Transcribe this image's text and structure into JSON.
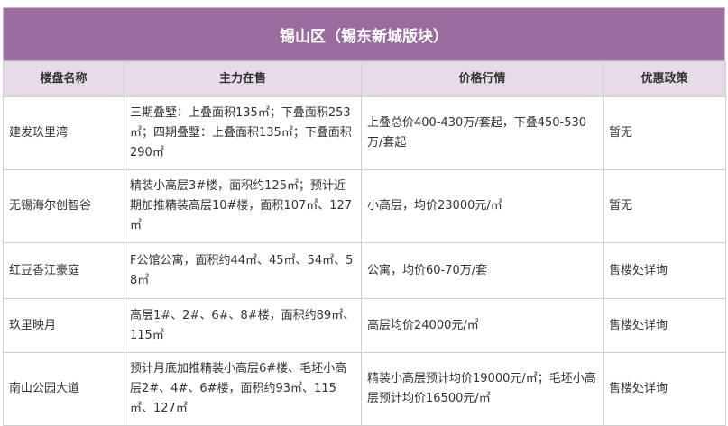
{
  "title": "锡山区（锡东新城版块）",
  "table": {
    "header": [
      "楼盘名称",
      "主力在售",
      "价格行情",
      "优惠政策"
    ],
    "rows": [
      [
        "建发玖里湾",
        "三期叠墅：上叠面积135㎡；下叠面积253㎡；四期叠墅：上叠面积135㎡；下叠面积290㎡",
        "上叠总价400-430万/套起，下叠450-530万/套起",
        "暂无"
      ],
      [
        "无锡海尔创智谷",
        "精装小高层3#楼，面积约125㎡；预计近期加推精装高层10#楼，面积107㎡、127㎡",
        "小高层，均价23000元/㎡",
        "暂无"
      ],
      [
        "红豆香江豪庭",
        "F公馆公寓，面积约44㎡、45㎡、54㎡、58㎡",
        "公寓，均价60-70万/套",
        "售楼处详询"
      ],
      [
        "玖里映月",
        "高层1#、2#、6#、8#楼，面积约89㎡、115㎡",
        "高层均价24000元/㎡",
        "售楼处详询"
      ],
      [
        "南山公园大道",
        "预计月底加推精装小高层6#楼、毛坯小高层2#、4#、6#楼，面积约93㎡、115㎡、127㎡",
        "精装小高层预计均价19000元/㎡；毛坯小高层预计均价16500元/㎡",
        "售楼处详询"
      ]
    ]
  }
}
